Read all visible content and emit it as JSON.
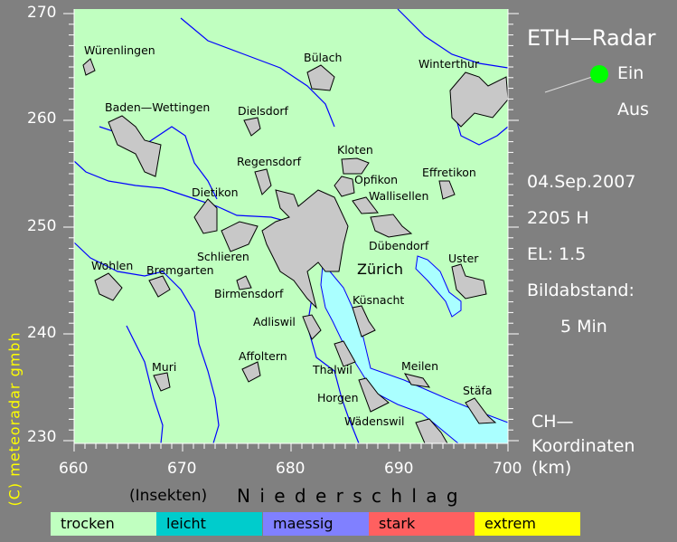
{
  "title": "ETH—Radar",
  "toggle": {
    "on_label": "Ein",
    "off_label": "Aus",
    "state": "Ein",
    "on_color": "#00ff00"
  },
  "info": {
    "date": "04.Sep.2007",
    "time": "2205 H",
    "elevation": "EL: 1.5",
    "interval_label": "Bildabstand:",
    "interval_value": "5 Min"
  },
  "coord_label": {
    "line1": "CH—",
    "line2": "Koordinaten",
    "line3": "(km)"
  },
  "x_ticks": [
    "660",
    "670",
    "680",
    "690",
    "700"
  ],
  "y_ticks": [
    "270",
    "260",
    "250",
    "240",
    "230"
  ],
  "copyright": "(C) meteoradar gmbh",
  "legend": {
    "insects_label": "(Insekten)",
    "title": "N i e d e r s c h l a g",
    "items": [
      {
        "label": "trocken",
        "color": "#c0ffc0"
      },
      {
        "label": "leicht",
        "color": "#00cccc"
      },
      {
        "label": "maessig",
        "color": "#8080ff"
      },
      {
        "label": "stark",
        "color": "#ff6060"
      },
      {
        "label": "extrem",
        "color": "#ffff00"
      }
    ]
  },
  "towns": [
    "Würenlingen",
    "Bülach",
    "Winterthur",
    "Baden—Wettingen",
    "Dielsdorf",
    "Kloten",
    "Regensdorf",
    "Opfikon",
    "Effretikon",
    "Dietikon",
    "Wallisellen",
    "Dübendorf",
    "Zürich",
    "Schlieren",
    "Uster",
    "Wohlen",
    "Bremgarten",
    "Birmensdorf",
    "Küsnacht",
    "Adliswil",
    "Affoltern",
    "Meilen",
    "Muri",
    "Thalwil",
    "Stäfa",
    "Horgen",
    "Wädenswil"
  ],
  "colors": {
    "land": "#c0ffc0",
    "lake": "#aaffff",
    "town": "#c8c8c8",
    "river": "#0000ff",
    "background": "#808080"
  }
}
